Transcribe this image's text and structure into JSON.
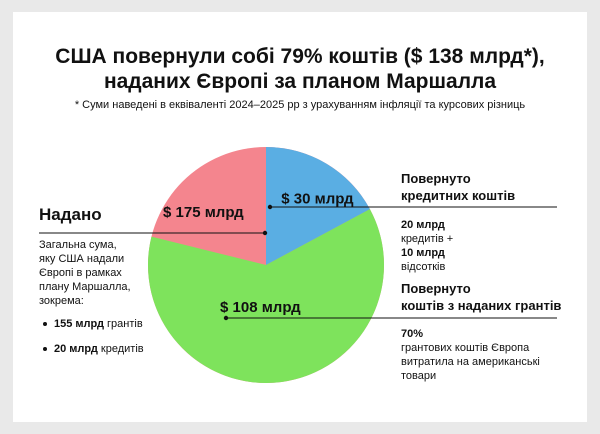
{
  "title": [
    "США повернули собі 79% коштів ($ 138 млрд*),",
    "наданих Європі за планом Маршалла"
  ],
  "footnote": "* Суми наведені в еквіваленті 2024–2025 рр з урахуванням інфляції та курсових різниць",
  "colors": {
    "given": "#f4858e",
    "credit_returned": "#5aaee3",
    "grant_returned": "#7ee35c"
  },
  "left_panel": {
    "heading": "Надано",
    "description": [
      "Загальна сума,",
      "яку США надали",
      "Європі в рамках",
      "плану Маршалла,",
      "зокрема:"
    ],
    "items": [
      {
        "value": "155 млрд",
        "text": " грантів"
      },
      {
        "value": "20 млрд",
        "text": " кредитів"
      }
    ]
  },
  "right_top": {
    "heading": [
      "Повернуто",
      "кредитних коштів"
    ],
    "lines": [
      {
        "value": "20 млрд",
        "text": " кредитів +"
      },
      {
        "value": "10 млрд",
        "text": " відсотків"
      }
    ]
  },
  "right_bottom": {
    "heading": [
      "Повернуто",
      "коштів з наданих грантів"
    ],
    "lines": [
      {
        "value": "70%",
        "text": " грантових коштів Європа"
      },
      {
        "value": "",
        "text": "витратила на американські"
      },
      {
        "value": "",
        "text": "товари"
      }
    ]
  },
  "chart_data": {
    "type": "pie",
    "title": "США повернули собі 79% коштів ($ 138 млрд*), наданих Європі за планом Маршалла",
    "units": "$ млрд",
    "slices": [
      {
        "label": "Повернуто кредитних коштів",
        "value": 30,
        "display": "$ 30 млрд",
        "color": "#5aaee3"
      },
      {
        "label": "Повернуто коштів з наданих грантів",
        "value": 108,
        "display": "$ 108 млрд",
        "color": "#7ee35c"
      }
    ],
    "total": {
      "label": "Надано",
      "value": 175,
      "display": "$ 175 млрд",
      "color": "#f4858e"
    }
  }
}
